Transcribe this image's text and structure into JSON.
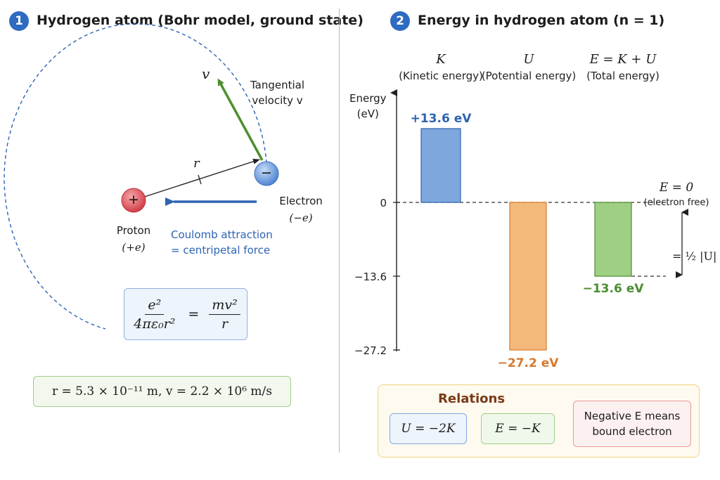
{
  "left": {
    "badge": "1",
    "title": "Hydrogen atom (Bohr model, ground state)",
    "v_symbol": "v",
    "tangential_label_1": "Tangential",
    "tangential_label_2": "velocity v",
    "r_symbol": "r",
    "proton_symbol": "+",
    "proton_label": "Proton",
    "proton_charge": "(+e)",
    "electron_symbol": "−",
    "electron_label": "Electron",
    "electron_charge": "(−e)",
    "force_label_1": "Coulomb attraction",
    "force_label_2": "= centripetal force",
    "formula": {
      "lhs_num": "e²",
      "lhs_den": "4πε₀r²",
      "equals": "=",
      "rhs_num": "mv²",
      "rhs_den": "r"
    },
    "values_text": "r = 5.3 × 10⁻¹¹ m,   v = 2.2 × 10⁶ m/s",
    "colors": {
      "velocity": "#4d8f2f",
      "force": "#2e63b3",
      "orbit": "#2e63b3",
      "proton": "#d94a52",
      "electron": "#5a8fd6"
    }
  },
  "right": {
    "badge": "2",
    "title": "Energy in hydrogen atom (n = 1)",
    "y_axis_label_1": "Energy",
    "y_axis_label_2": "(eV)",
    "bars_header": [
      {
        "symbol": "K",
        "desc": "(Kinetic energy)"
      },
      {
        "symbol": "U",
        "desc": "(Potential energy)"
      },
      {
        "symbol": "E = K + U",
        "desc": "(Total energy)"
      }
    ],
    "e_zero_label": "E = 0",
    "e_zero_sub": "(electron free)",
    "half_u_label": "= ½ |U|",
    "relations": {
      "title": "Relations",
      "items": [
        "U = −2K",
        "E = −K",
        "Negative E means bound electron"
      ],
      "item3_line1": "Negative E means",
      "item3_line2": "bound electron"
    }
  },
  "chart_data": {
    "type": "bar",
    "categories": [
      "K",
      "U",
      "E = K + U"
    ],
    "values": [
      13.6,
      -27.2,
      -13.6
    ],
    "value_labels": [
      "+13.6 eV",
      "−27.2 eV",
      "−13.6 eV"
    ],
    "colors": [
      "#7ea7de",
      "#f3b97a",
      "#9fcf84"
    ],
    "label_colors": [
      "#2d63b0",
      "#d9772a",
      "#4b8d2f"
    ],
    "ylabel": "Energy (eV)",
    "yticks": [
      {
        "value": 0,
        "label": "0"
      },
      {
        "value": -13.6,
        "label": "−13.6"
      },
      {
        "value": -27.2,
        "label": "−27.2"
      }
    ],
    "ylim": [
      -28,
      19
    ],
    "grid": false
  }
}
